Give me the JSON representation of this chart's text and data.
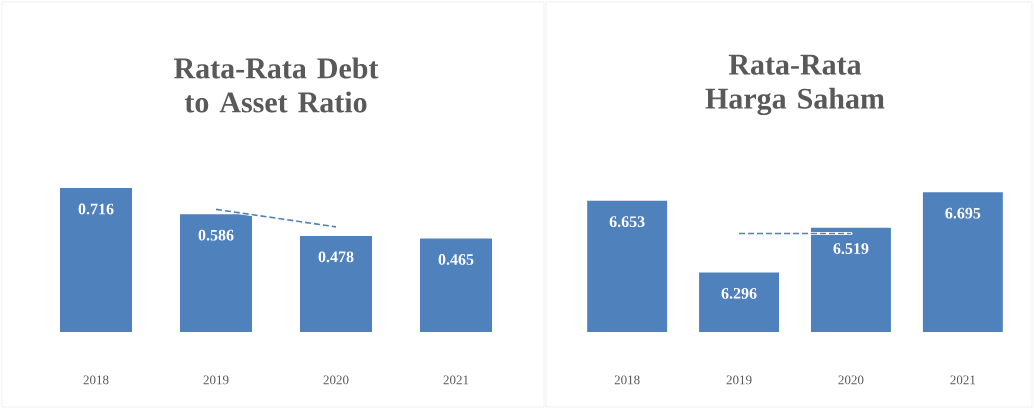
{
  "chart_data": [
    {
      "type": "bar",
      "title": "Rata-Rata Debt to Asset Ratio",
      "categories": [
        "2018",
        "2019",
        "2020",
        "2021"
      ],
      "ylim": [
        0,
        0.716
      ],
      "series": [
        {
          "type": "line",
          "color": "#4f81bd",
          "line_style": "dashed",
          "values": [
            null,
            0.61,
            0.523,
            null
          ]
        },
        {
          "color": "#4f81bd",
          "values": [
            0.716,
            0.586,
            0.478,
            0.465
          ],
          "value_labels": [
            "0.716",
            "0.586",
            "0.478",
            "0.465"
          ]
        }
      ]
    },
    {
      "type": "bar",
      "title": "Rata-Rata Harga Saham",
      "categories": [
        "2018",
        "2019",
        "2020",
        "2021"
      ],
      "ylim": [
        6.0,
        6.695
      ],
      "series": [
        {
          "type": "line",
          "color": "#4f81bd",
          "line_style": "dashed",
          "values": [
            null,
            6.49,
            6.49,
            null
          ]
        },
        {
          "color": "#4f81bd",
          "values": [
            6.653,
            6.296,
            6.519,
            6.695
          ],
          "value_labels": [
            "6.653",
            "6.296",
            "6.519",
            "6.695"
          ]
        }
      ]
    }
  ]
}
